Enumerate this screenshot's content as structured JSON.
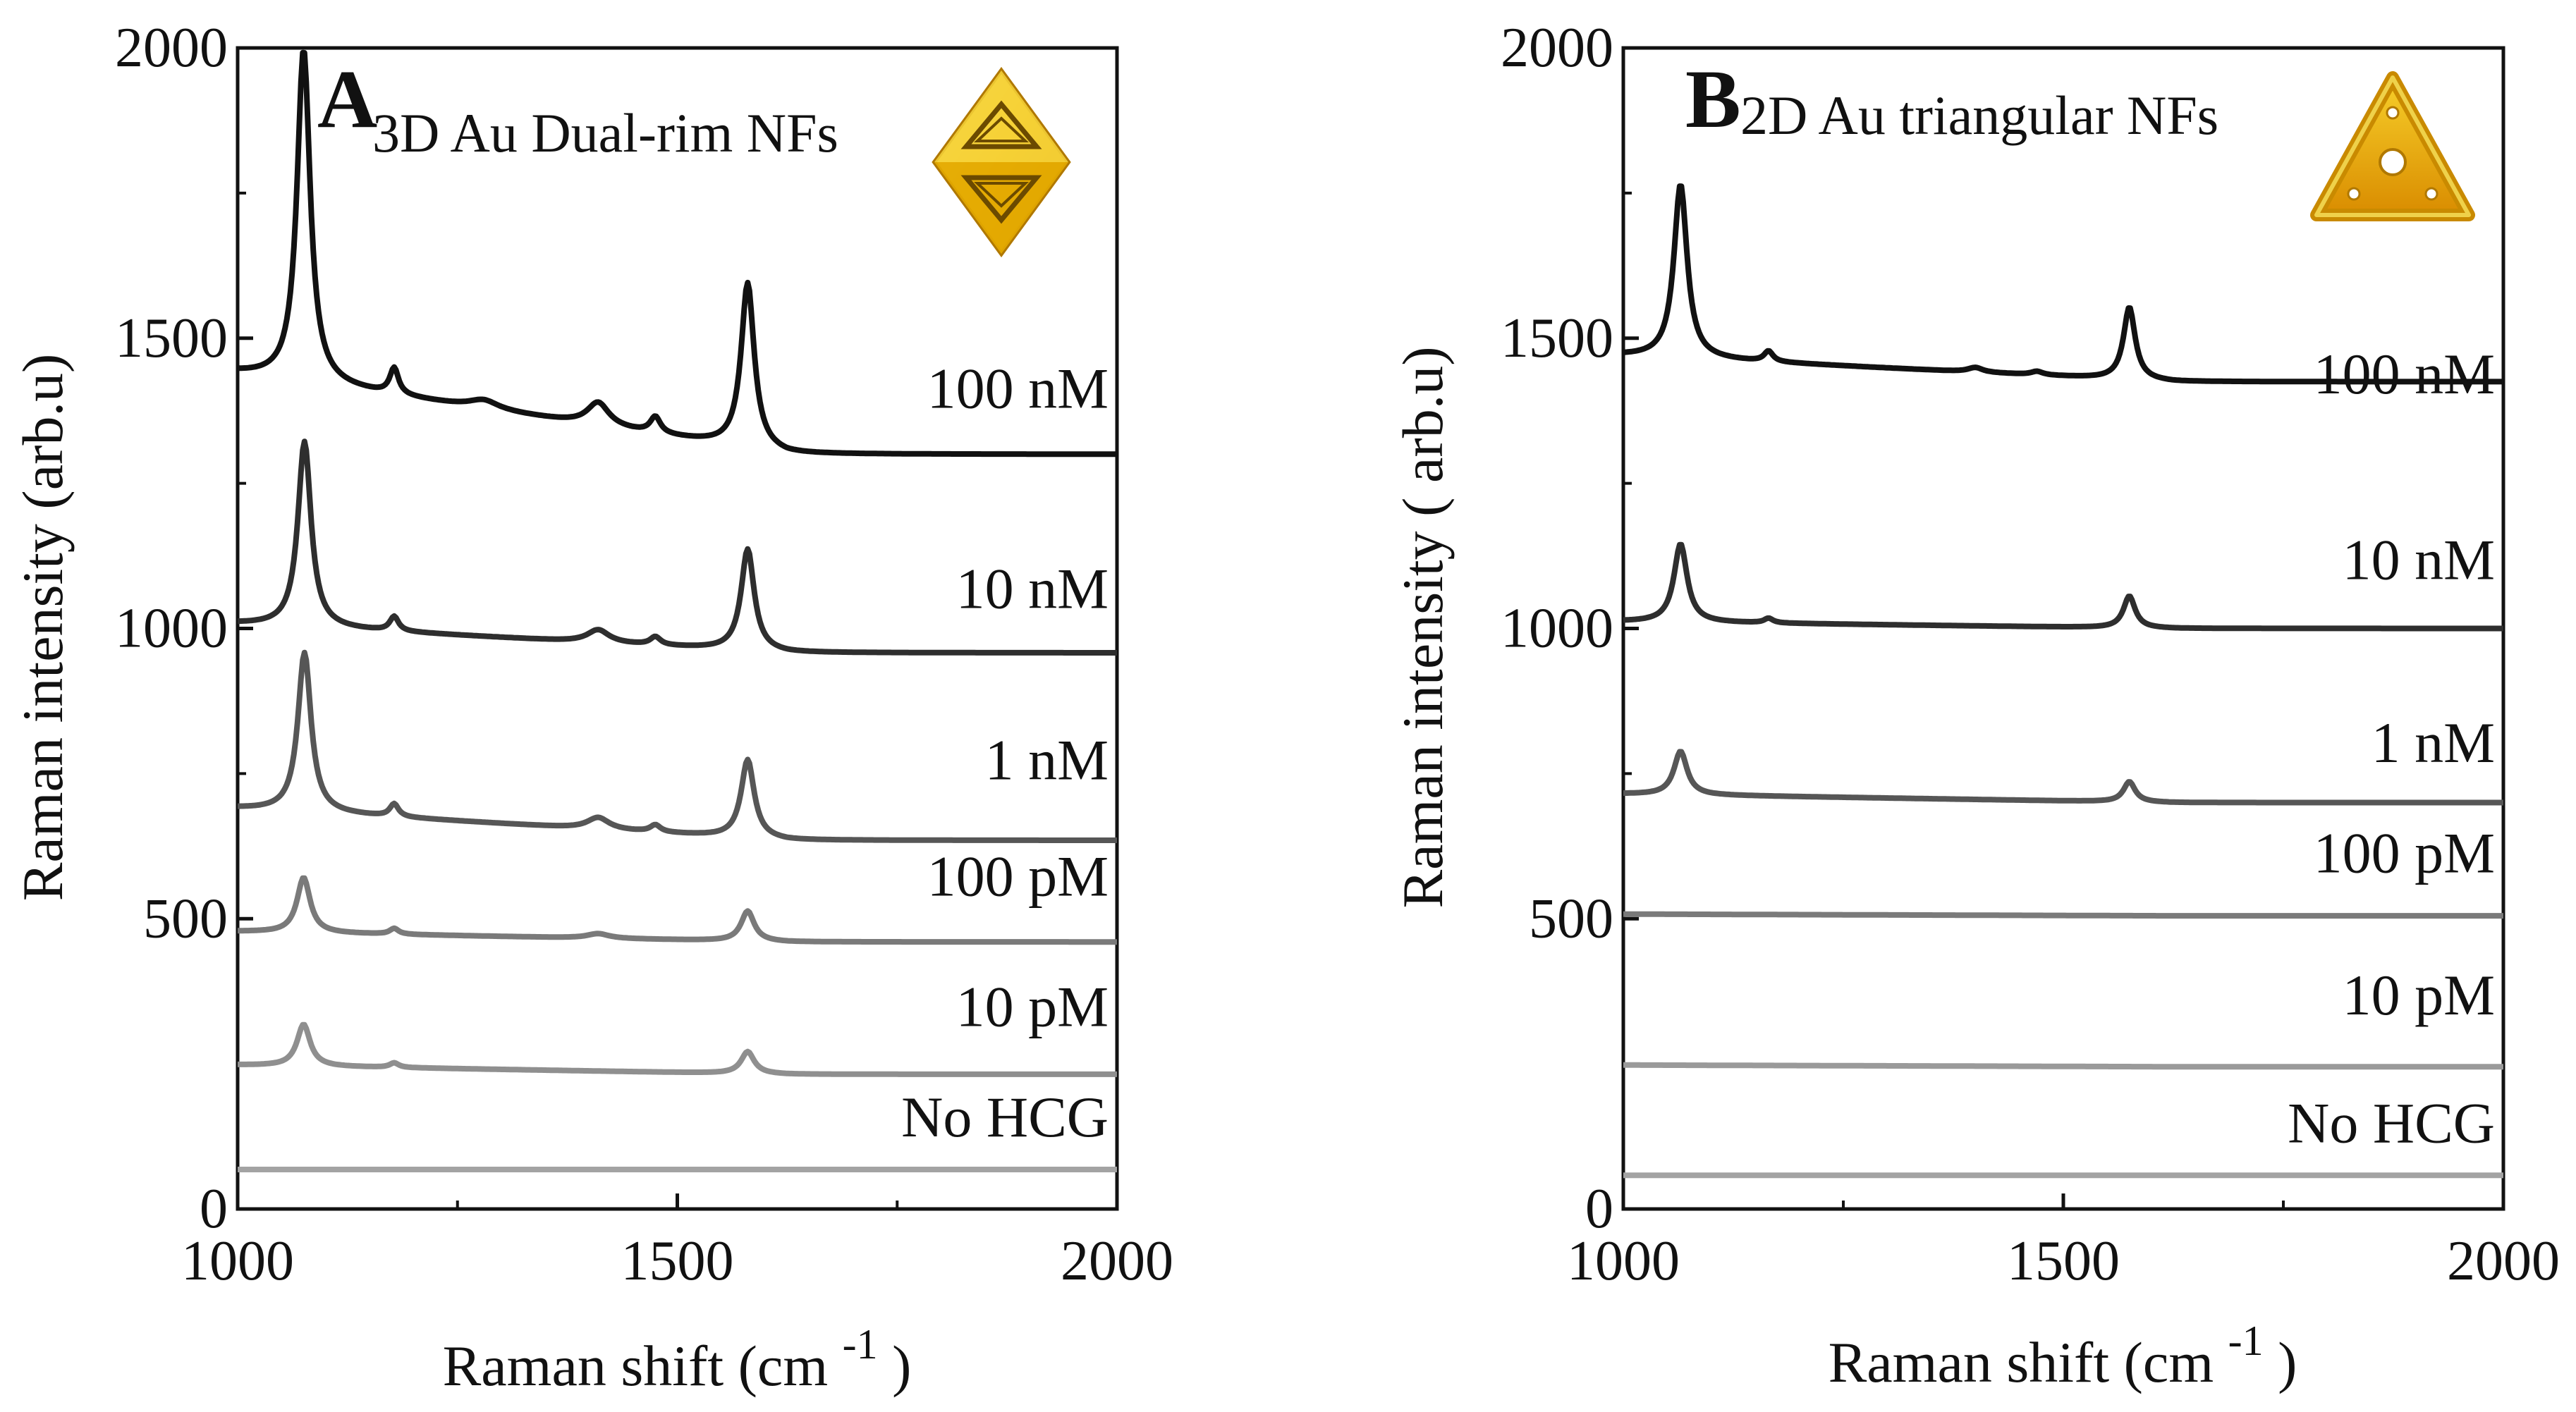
{
  "chart_data": [
    {
      "type": "line",
      "panel_letter": "A",
      "title": "3D Au Dual-rim  NFs",
      "xlabel": "Raman shift (cm",
      "xlabel_sup": "-1",
      "xlabel_close": ")",
      "ylabel": "Raman intensity (arb.u)",
      "xlim": [
        1000,
        2000
      ],
      "ylim": [
        0,
        2000
      ],
      "xticks": [
        1000,
        1500,
        2000
      ],
      "yticks": [
        0,
        500,
        1000,
        1500,
        2000
      ],
      "grid": false,
      "inset_icon": "octahedral-gold-nanoframe",
      "series": [
        {
          "name": "No HCG",
          "color": "#a3a3a3",
          "baseline": [
            68,
            68
          ],
          "peaks": [],
          "label_y": 125
        },
        {
          "name": "10 pM",
          "color": "#8f8f8f",
          "baseline": [
            248,
            232
          ],
          "peaks": [
            [
              1075,
              72,
              9
            ],
            [
              1178,
              8,
              6
            ],
            [
              1580,
              38,
              9
            ]
          ],
          "label_y": 315
        },
        {
          "name": "100 pM",
          "color": "#7a7a7a",
          "baseline": [
            478,
            460
          ],
          "peaks": [
            [
              1075,
              95,
              9
            ],
            [
              1178,
              10,
              6
            ],
            [
              1410,
              8,
              15
            ],
            [
              1580,
              52,
              9
            ]
          ],
          "label_y": 540
        },
        {
          "name": "1 nM",
          "color": "#565656",
          "baseline": [
            690,
            635
          ],
          "peaks": [
            [
              1076,
              275,
              9
            ],
            [
              1178,
              22,
              6
            ],
            [
              1410,
              20,
              15
            ],
            [
              1475,
              12,
              7
            ],
            [
              1580,
              135,
              9
            ]
          ],
          "label_y": 740
        },
        {
          "name": "10 nM",
          "color": "#2e2e2e",
          "baseline": [
            1008,
            958
          ],
          "peaks": [
            [
              1076,
              320,
              9
            ],
            [
              1178,
              25,
              6
            ],
            [
              1410,
              22,
              15
            ],
            [
              1475,
              14,
              7
            ],
            [
              1580,
              175,
              9
            ]
          ],
          "label_y": 1035
        },
        {
          "name": "100 nM",
          "color": "#111111",
          "baseline": [
            1440,
            1300
          ],
          "peaks": [
            [
              1075,
              575,
              9
            ],
            [
              1178,
              45,
              6
            ],
            [
              1280,
              15,
              20
            ],
            [
              1410,
              40,
              15
            ],
            [
              1475,
              28,
              7
            ],
            [
              1580,
              285,
              9
            ]
          ],
          "label_y": 1380
        }
      ]
    },
    {
      "type": "line",
      "panel_letter": "B",
      "title": "2D Au triangular NFs",
      "xlabel": "Raman shift (cm",
      "xlabel_sup": "-1",
      "xlabel_close": ")",
      "ylabel": "Raman intensity ( arb.u)",
      "xlim": [
        1000,
        2000
      ],
      "ylim": [
        0,
        2000
      ],
      "xticks": [
        1000,
        1500,
        2000
      ],
      "yticks": [
        0,
        500,
        1000,
        1500,
        2000
      ],
      "grid": false,
      "inset_icon": "triangular-gold-nanoframe",
      "series": [
        {
          "name": "No HCG",
          "color": "#a3a3a3",
          "baseline": [
            58,
            58
          ],
          "peaks": [],
          "label_y": 115
        },
        {
          "name": "10 pM",
          "color": "#9a9a9a",
          "baseline": [
            248,
            245
          ],
          "peaks": [],
          "label_y": 335
        },
        {
          "name": "100 pM",
          "color": "#7a7a7a",
          "baseline": [
            508,
            505
          ],
          "peaks": [],
          "label_y": 580
        },
        {
          "name": "1 nM",
          "color": "#565656",
          "baseline": [
            715,
            700
          ],
          "peaks": [
            [
              1065,
              75,
              9
            ],
            [
              1575,
              35,
              8
            ]
          ],
          "label_y": 770
        },
        {
          "name": "10 nM",
          "color": "#2e2e2e",
          "baseline": [
            1012,
            1000
          ],
          "peaks": [
            [
              1065,
              135,
              9
            ],
            [
              1165,
              8,
              6
            ],
            [
              1575,
              55,
              8
            ]
          ],
          "label_y": 1085
        },
        {
          "name": "100 nM",
          "color": "#111111",
          "baseline": [
            1470,
            1425
          ],
          "peaks": [
            [
              1065,
              300,
              9
            ],
            [
              1165,
              18,
              6
            ],
            [
              1400,
              8,
              10
            ],
            [
              1470,
              6,
              8
            ],
            [
              1575,
              125,
              8
            ]
          ],
          "label_y": 1405
        }
      ]
    }
  ]
}
